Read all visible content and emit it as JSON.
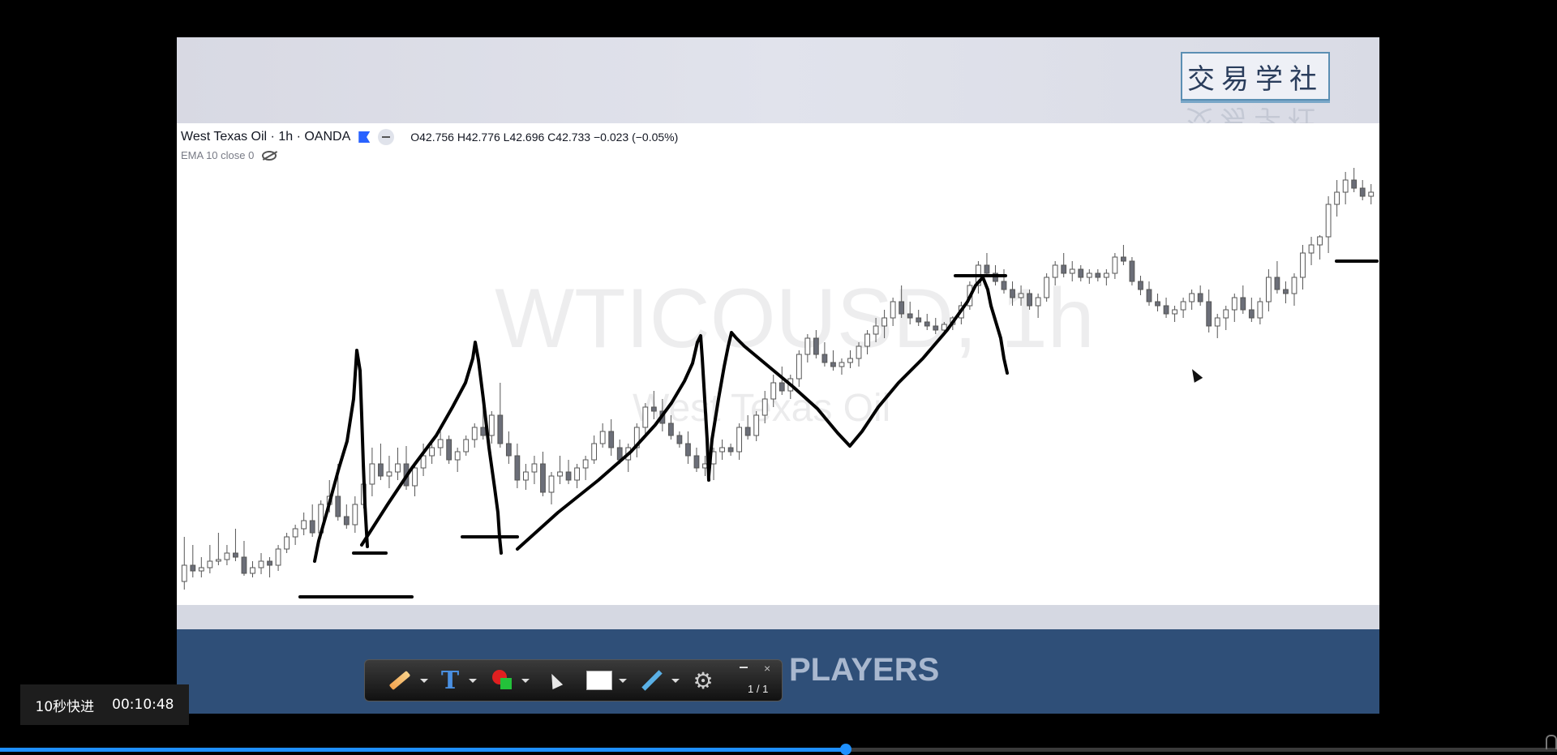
{
  "brand": {
    "title": "交易学社"
  },
  "chart": {
    "symbol_line": "West Texas Oil · 1h · OANDA",
    "ohlc": "O42.756  H42.776  L42.696  C42.733  −0.023 (−0.05%)",
    "indicator": "EMA 10 close 0",
    "watermark_symbol": "WTICOUSD, 1h",
    "watermark_name": "West Texas Oil"
  },
  "banner": {
    "text": "PLAYERS"
  },
  "toolbar": {
    "tools": [
      "pencil-icon",
      "text-icon",
      "color-icon",
      "cursor-icon",
      "rect-icon",
      "hammer-icon",
      "gear-icon"
    ],
    "text_tool_glyph": "T",
    "gear_glyph": "⚙",
    "close_glyph": "×",
    "page_count": "1 / 1"
  },
  "player": {
    "skip_label": "10秒快进",
    "time": "00:10:48",
    "progress": 0.543,
    "accent": "#1e90ff"
  },
  "chart_data": {
    "type": "candlestick",
    "candles": [
      [
        565,
        575,
        510,
        545
      ],
      [
        545,
        560,
        520,
        552
      ],
      [
        552,
        560,
        535,
        548
      ],
      [
        548,
        555,
        520,
        540
      ],
      [
        540,
        545,
        505,
        538
      ],
      [
        538,
        545,
        520,
        530
      ],
      [
        530,
        540,
        500,
        535
      ],
      [
        535,
        558,
        515,
        555
      ],
      [
        555,
        560,
        540,
        548
      ],
      [
        548,
        556,
        530,
        540
      ],
      [
        540,
        560,
        535,
        545
      ],
      [
        545,
        552,
        520,
        525
      ],
      [
        525,
        530,
        505,
        510
      ],
      [
        510,
        520,
        495,
        500
      ],
      [
        500,
        508,
        480,
        490
      ],
      [
        490,
        510,
        470,
        505
      ],
      [
        505,
        512,
        465,
        470
      ],
      [
        470,
        480,
        440,
        460
      ],
      [
        460,
        490,
        420,
        485
      ],
      [
        485,
        500,
        470,
        495
      ],
      [
        495,
        505,
        460,
        470
      ],
      [
        470,
        475,
        430,
        445
      ],
      [
        445,
        460,
        400,
        420
      ],
      [
        420,
        440,
        395,
        435
      ],
      [
        435,
        450,
        410,
        430
      ],
      [
        430,
        440,
        400,
        420
      ],
      [
        420,
        452,
        398,
        447
      ],
      [
        447,
        460,
        420,
        425
      ],
      [
        425,
        435,
        395,
        410
      ],
      [
        410,
        420,
        390,
        400
      ],
      [
        400,
        410,
        380,
        390
      ],
      [
        390,
        420,
        385,
        415
      ],
      [
        415,
        430,
        400,
        405
      ],
      [
        405,
        410,
        385,
        390
      ],
      [
        390,
        400,
        370,
        375
      ],
      [
        375,
        390,
        340,
        385
      ],
      [
        385,
        395,
        355,
        360
      ],
      [
        360,
        400,
        320,
        395
      ],
      [
        395,
        420,
        380,
        410
      ],
      [
        410,
        450,
        395,
        440
      ],
      [
        440,
        452,
        420,
        430
      ],
      [
        430,
        445,
        410,
        420
      ],
      [
        420,
        460,
        405,
        455
      ],
      [
        455,
        470,
        430,
        435
      ],
      [
        435,
        445,
        410,
        430
      ],
      [
        430,
        445,
        415,
        440
      ],
      [
        440,
        450,
        420,
        425
      ],
      [
        425,
        440,
        410,
        415
      ],
      [
        415,
        420,
        385,
        395
      ],
      [
        395,
        400,
        370,
        380
      ],
      [
        380,
        410,
        365,
        400
      ],
      [
        400,
        420,
        390,
        415
      ],
      [
        415,
        430,
        395,
        400
      ],
      [
        400,
        412,
        370,
        375
      ],
      [
        375,
        385,
        345,
        350
      ],
      [
        350,
        365,
        330,
        355
      ],
      [
        355,
        380,
        340,
        370
      ],
      [
        370,
        390,
        360,
        385
      ],
      [
        385,
        400,
        380,
        395
      ],
      [
        395,
        420,
        380,
        410
      ],
      [
        410,
        430,
        400,
        425
      ],
      [
        425,
        435,
        410,
        420
      ],
      [
        420,
        440,
        400,
        405
      ],
      [
        405,
        415,
        390,
        400
      ],
      [
        400,
        410,
        395,
        405
      ],
      [
        405,
        415,
        370,
        375
      ],
      [
        375,
        390,
        360,
        385
      ],
      [
        385,
        392,
        355,
        360
      ],
      [
        360,
        370,
        330,
        340
      ],
      [
        340,
        350,
        310,
        320
      ],
      [
        320,
        335,
        300,
        330
      ],
      [
        330,
        340,
        310,
        315
      ],
      [
        315,
        325,
        280,
        285
      ],
      [
        285,
        295,
        260,
        265
      ],
      [
        265,
        290,
        255,
        285
      ],
      [
        285,
        300,
        270,
        295
      ],
      [
        295,
        305,
        280,
        300
      ],
      [
        300,
        310,
        290,
        295
      ],
      [
        295,
        302,
        280,
        290
      ],
      [
        290,
        300,
        270,
        275
      ],
      [
        275,
        285,
        255,
        260
      ],
      [
        260,
        270,
        240,
        250
      ],
      [
        250,
        265,
        230,
        240
      ],
      [
        240,
        250,
        215,
        220
      ],
      [
        220,
        240,
        200,
        235
      ],
      [
        235,
        248,
        220,
        240
      ],
      [
        240,
        250,
        230,
        245
      ],
      [
        245,
        255,
        235,
        250
      ],
      [
        250,
        260,
        240,
        255
      ],
      [
        255,
        262,
        245,
        248
      ],
      [
        248,
        255,
        238,
        240
      ],
      [
        240,
        248,
        220,
        225
      ],
      [
        225,
        230,
        195,
        200
      ],
      [
        200,
        210,
        170,
        175
      ],
      [
        175,
        190,
        160,
        185
      ],
      [
        185,
        200,
        175,
        195
      ],
      [
        195,
        210,
        180,
        205
      ],
      [
        205,
        225,
        195,
        215
      ],
      [
        215,
        225,
        200,
        210
      ],
      [
        210,
        230,
        205,
        225
      ],
      [
        225,
        240,
        210,
        215
      ],
      [
        215,
        220,
        185,
        190
      ],
      [
        190,
        200,
        170,
        175
      ],
      [
        175,
        190,
        160,
        185
      ],
      [
        185,
        195,
        170,
        180
      ],
      [
        180,
        195,
        175,
        190
      ],
      [
        190,
        198,
        180,
        185
      ],
      [
        185,
        195,
        180,
        190
      ],
      [
        190,
        200,
        180,
        185
      ],
      [
        185,
        192,
        160,
        165
      ],
      [
        165,
        175,
        150,
        170
      ],
      [
        170,
        200,
        165,
        195
      ],
      [
        195,
        212,
        188,
        205
      ],
      [
        205,
        225,
        195,
        220
      ],
      [
        220,
        232,
        210,
        225
      ],
      [
        225,
        240,
        215,
        235
      ],
      [
        235,
        245,
        225,
        230
      ],
      [
        230,
        240,
        215,
        220
      ],
      [
        220,
        230,
        205,
        210
      ],
      [
        210,
        225,
        200,
        220
      ],
      [
        220,
        258,
        205,
        250
      ],
      [
        250,
        265,
        235,
        240
      ],
      [
        240,
        255,
        225,
        230
      ],
      [
        230,
        245,
        210,
        215
      ],
      [
        215,
        235,
        200,
        230
      ],
      [
        230,
        245,
        215,
        240
      ],
      [
        240,
        248,
        215,
        220
      ],
      [
        220,
        232,
        180,
        190
      ],
      [
        190,
        210,
        170,
        205
      ],
      [
        205,
        222,
        195,
        210
      ],
      [
        210,
        225,
        185,
        190
      ],
      [
        190,
        205,
        150,
        160
      ],
      [
        160,
        175,
        140,
        150
      ],
      [
        150,
        168,
        138,
        140
      ],
      [
        140,
        160,
        90,
        100
      ],
      [
        100,
        115,
        70,
        85
      ],
      [
        85,
        100,
        60,
        70
      ],
      [
        70,
        85,
        55,
        80
      ],
      [
        80,
        95,
        70,
        90
      ],
      [
        90,
        100,
        75,
        85
      ]
    ]
  }
}
